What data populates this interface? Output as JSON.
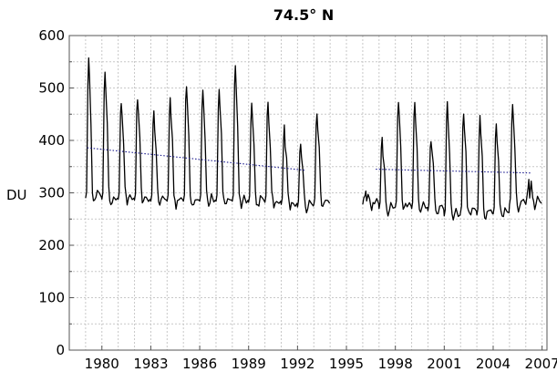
{
  "chart_data": {
    "type": "line",
    "title": "74.5° N",
    "xlabel": "",
    "ylabel": "DU",
    "xlim": [
      1978.0,
      2007.3
    ],
    "ylim": [
      0,
      600
    ],
    "x_ticks": [
      1980,
      1983,
      1986,
      1989,
      1992,
      1995,
      1998,
      2001,
      2004,
      2007
    ],
    "y_ticks": [
      0,
      100,
      200,
      300,
      400,
      500,
      600
    ],
    "grid": true,
    "series": [
      {
        "color": "#000000",
        "style": "solid",
        "segments": [
          {
            "start_year": 1979,
            "end_year": 1993,
            "peaks": [
              552,
              535,
              475,
              480,
              455,
              480,
              505,
              500,
              495,
              542,
              472,
              470,
              425,
              390,
              450
            ],
            "troughs": [
              282,
              280,
              280,
              278,
              276,
              276,
              276,
              276,
              276,
              276,
              274,
              274,
              270,
              265,
              270
            ]
          },
          {
            "start_year": 1996,
            "end_year": 2006,
            "peaks": [
              300,
              405,
              475,
              470,
              405,
              470,
              455,
              440,
              435,
              470,
              320
            ],
            "troughs": [
              270,
              262,
              265,
              262,
              258,
              248,
              255,
              250,
              252,
              270,
              270
            ]
          }
        ]
      },
      {
        "color": "#1a1a8c",
        "style": "dotted",
        "segments": [
          {
            "x": [
              1979.1,
              1992.5
            ],
            "y": [
              386,
              343
            ]
          },
          {
            "x": [
              1996.8,
              2006.3
            ],
            "y": [
              345,
              338
            ]
          }
        ]
      }
    ]
  }
}
